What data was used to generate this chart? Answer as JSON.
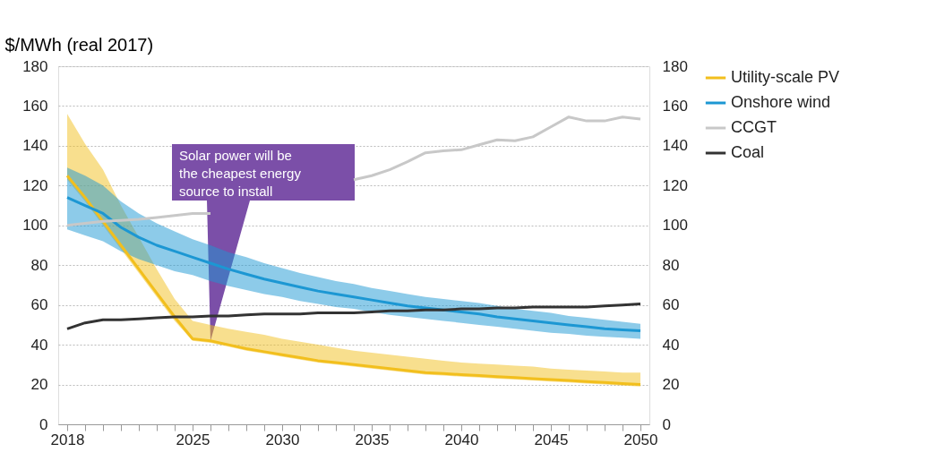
{
  "chart_data": {
    "type": "line",
    "ylabel": "$/MWh (real 2017)",
    "x": [
      2018,
      2019,
      2020,
      2021,
      2022,
      2023,
      2024,
      2025,
      2026,
      2027,
      2028,
      2029,
      2030,
      2031,
      2032,
      2033,
      2034,
      2035,
      2036,
      2037,
      2038,
      2039,
      2040,
      2041,
      2042,
      2043,
      2044,
      2045,
      2046,
      2047,
      2048,
      2049,
      2050
    ],
    "series": [
      {
        "name": "Utility-scale PV",
        "color": "#f2bf1d",
        "values": [
          125,
          114,
          102,
          90,
          78,
          66,
          54,
          43,
          42,
          40,
          38,
          36.5,
          35,
          33.5,
          32,
          31,
          30,
          29,
          28,
          27,
          26,
          25.5,
          25,
          24.5,
          24,
          23.5,
          23,
          22.5,
          22,
          21.5,
          21,
          20.5,
          20
        ],
        "lower": [
          123,
          112,
          100,
          88,
          76,
          64,
          52,
          42,
          41,
          39,
          37,
          35.5,
          34,
          32.5,
          31,
          30,
          29,
          28,
          27,
          26,
          25,
          24.5,
          24,
          23.5,
          23,
          22.5,
          22,
          21.5,
          21,
          20.5,
          20,
          19.5,
          19
        ],
        "upper": [
          156,
          141,
          128,
          110,
          94,
          78,
          63,
          52,
          50,
          48,
          46.5,
          45,
          43,
          41.5,
          40,
          38.5,
          37,
          36,
          35,
          34,
          33,
          32,
          31,
          30.5,
          30,
          29.5,
          29,
          28,
          27.5,
          27,
          26.5,
          26,
          26
        ]
      },
      {
        "name": "Onshore wind",
        "color": "#1c97d3",
        "values": [
          114,
          110,
          106,
          99,
          94,
          90,
          87,
          84,
          81,
          78,
          75.5,
          73,
          71,
          69,
          67,
          65.5,
          64,
          62.5,
          61,
          59.5,
          58.5,
          57.5,
          56.5,
          55.5,
          54,
          53,
          52,
          51,
          50,
          49,
          48,
          47.5,
          47
        ],
        "lower": [
          98,
          95,
          92,
          87,
          83,
          80,
          77,
          75,
          72,
          69.5,
          67.5,
          65.5,
          64,
          62,
          60.5,
          59,
          58,
          56.5,
          55,
          54,
          53,
          52,
          51,
          50,
          49,
          48,
          47,
          46,
          45.5,
          44.5,
          44,
          43.5,
          43
        ],
        "upper": [
          129,
          125,
          120,
          112,
          106,
          101,
          97,
          93,
          90,
          86.5,
          84,
          81,
          78.5,
          76,
          74,
          72,
          70.5,
          68.5,
          67,
          65.5,
          64,
          63,
          62,
          61,
          59.5,
          58,
          57,
          56,
          54.5,
          53.5,
          52.5,
          51.5,
          50.5
        ]
      },
      {
        "name": "CCGT",
        "color": "#c8c8c8",
        "values": [
          100,
          101,
          102,
          102.5,
          103,
          104,
          105,
          106,
          106,
          null,
          null,
          null,
          null,
          null,
          null,
          null,
          123,
          125,
          128,
          132,
          136.5,
          137.5,
          138,
          140.5,
          143,
          142.5,
          144.5,
          149.5,
          154.5,
          152.5,
          152.5,
          154.5,
          153.5
        ]
      },
      {
        "name": "Coal",
        "color": "#333333",
        "values": [
          48,
          51,
          52.5,
          52.5,
          53,
          53.5,
          54,
          54,
          54.5,
          54.5,
          55,
          55.5,
          55.5,
          55.5,
          56,
          56,
          56,
          56.5,
          57,
          57,
          57.5,
          57.5,
          58,
          58,
          58.5,
          58.5,
          59,
          59,
          59,
          59,
          59.5,
          60,
          60.5
        ]
      }
    ],
    "xlim": [
      2017.5,
      2050.5
    ],
    "xticks": [
      2018,
      {
        "value": 2019,
        "label": null
      },
      {
        "value": 2020,
        "label": null
      },
      {
        "value": 2021,
        "label": null
      },
      {
        "value": 2022,
        "label": null
      },
      {
        "value": 2023,
        "label": null
      },
      {
        "value": 2024,
        "label": null
      },
      2025,
      {
        "value": 2026,
        "label": null
      },
      {
        "value": 2027,
        "label": null
      },
      {
        "value": 2028,
        "label": null
      },
      {
        "value": 2029,
        "label": null
      },
      2030,
      {
        "value": 2031,
        "label": null
      },
      {
        "value": 2032,
        "label": null
      },
      {
        "value": 2033,
        "label": null
      },
      {
        "value": 2034,
        "label": null
      },
      2035,
      {
        "value": 2036,
        "label": null
      },
      {
        "value": 2037,
        "label": null
      },
      {
        "value": 2038,
        "label": null
      },
      {
        "value": 2039,
        "label": null
      },
      2040,
      {
        "value": 2041,
        "label": null
      },
      {
        "value": 2042,
        "label": null
      },
      {
        "value": 2043,
        "label": null
      },
      {
        "value": 2044,
        "label": null
      },
      2045,
      {
        "value": 2046,
        "label": null
      },
      {
        "value": 2047,
        "label": null
      },
      {
        "value": 2048,
        "label": null
      },
      {
        "value": 2049,
        "label": null
      },
      2050
    ],
    "ylim": [
      0,
      180
    ],
    "yticks": [
      0,
      20,
      40,
      60,
      80,
      100,
      120,
      140,
      160,
      180
    ],
    "y2lim": [
      0,
      180
    ],
    "y2ticks": [
      0,
      20,
      40,
      60,
      80,
      100,
      120,
      140,
      160,
      180
    ],
    "grid": "y",
    "legend": "right",
    "marker": "none",
    "line_style": "solid",
    "annotations": [
      "Solar power will be\nthe cheapest energy\nsource to install"
    ]
  }
}
